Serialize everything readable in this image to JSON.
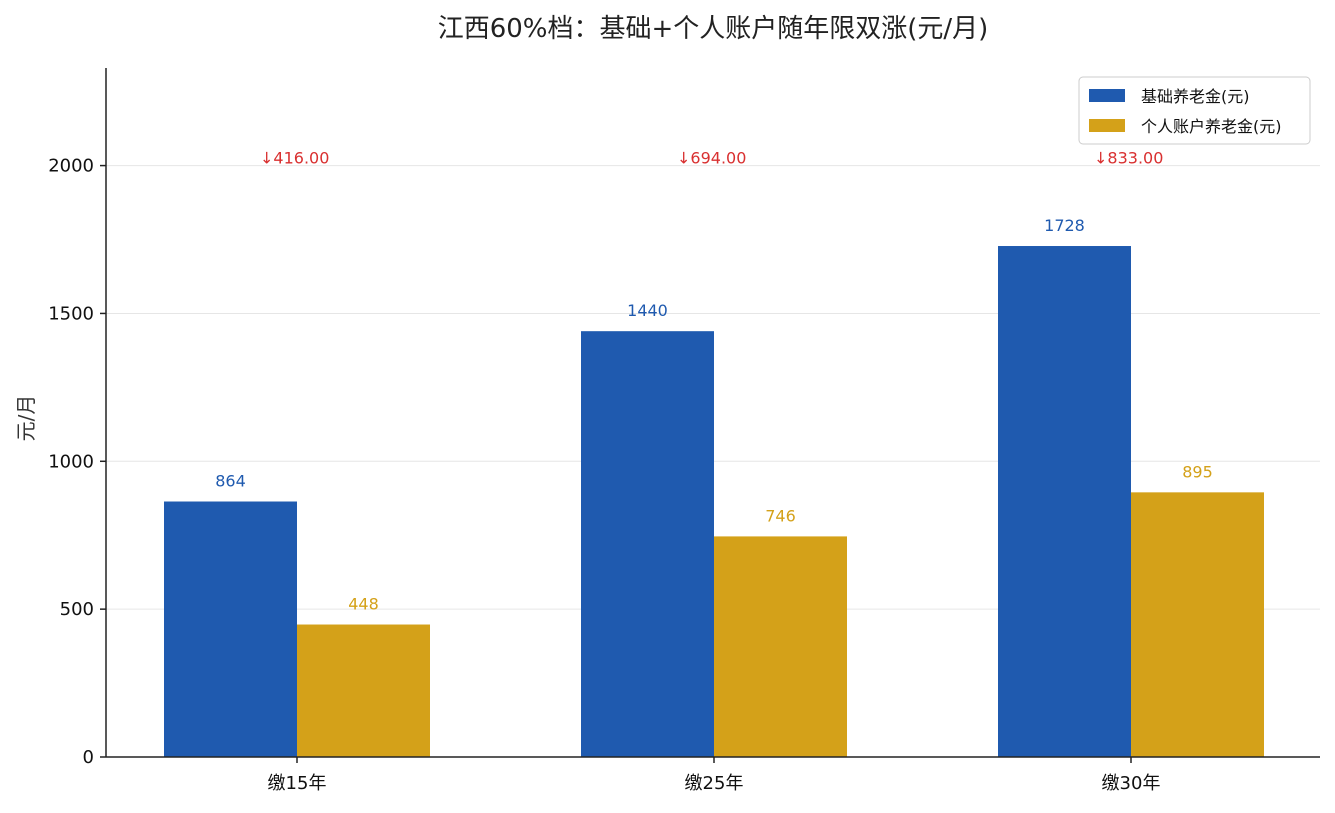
{
  "chart_data": {
    "type": "bar",
    "title": "江西60%档：基础+个人账户随年限双涨(元/月)",
    "xlabel": "",
    "ylabel": "元/月",
    "categories": [
      "缴15年",
      "缴25年",
      "缴30年"
    ],
    "series": [
      {
        "name": "基础养老金(元)",
        "values": [
          864,
          1440,
          1728
        ],
        "color": "#1f5aaf"
      },
      {
        "name": "个人账户养老金(元)",
        "values": [
          448,
          746,
          895
        ],
        "color": "#d4a119"
      }
    ],
    "annotations": [
      "↓416.00",
      "↓694.00",
      "↓833.00"
    ],
    "annotation_color": "#d93030",
    "ylim": [
      0,
      2330
    ],
    "yticks": [
      0,
      500,
      1000,
      1500,
      2000
    ],
    "grid": true,
    "legend_position": "top-right"
  }
}
